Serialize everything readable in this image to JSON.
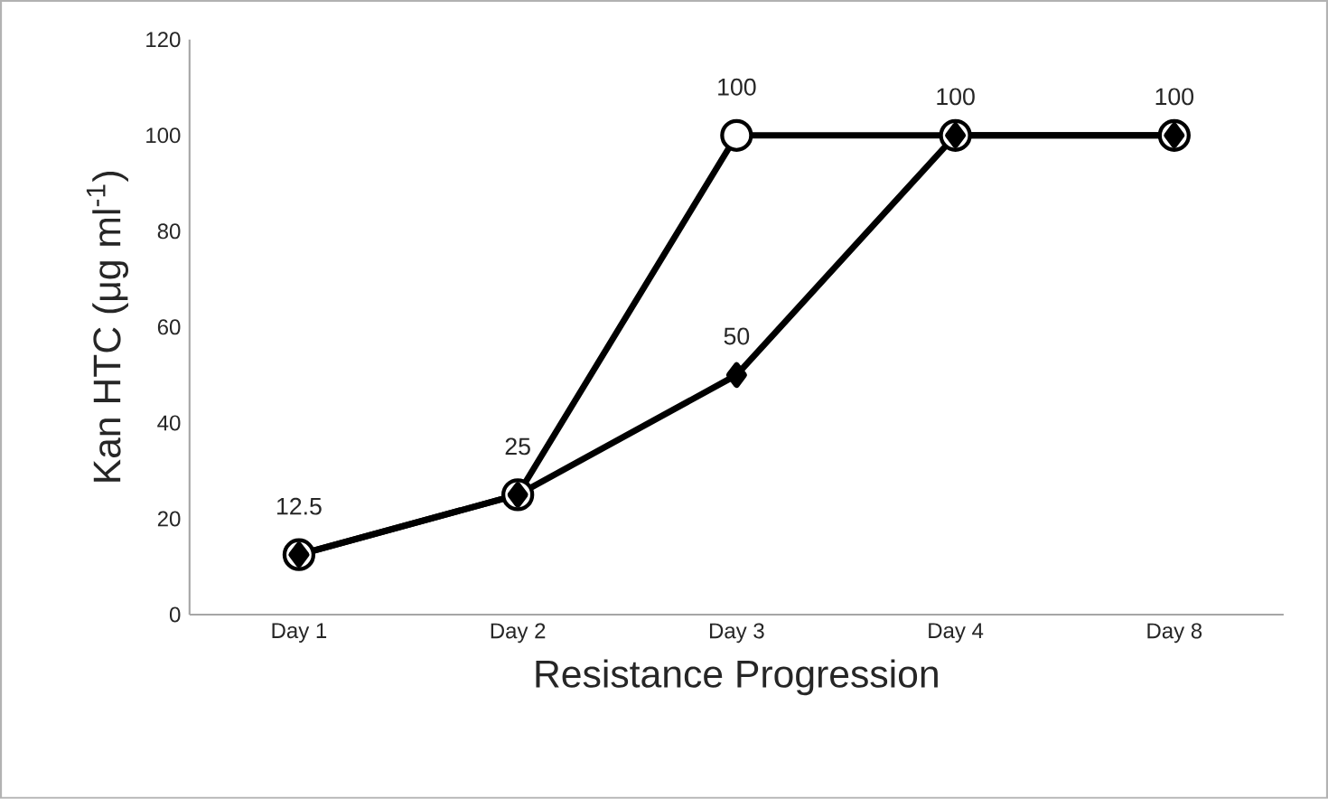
{
  "chart_data": {
    "type": "line",
    "xlabel": "Resistance Progression",
    "ylabel": "Kan HTC (μg ml$^{-1}$)",
    "categories": [
      "Day 1",
      "Day 2",
      "Day 3",
      "Day 4",
      "Day 8"
    ],
    "ylim": [
      0,
      120
    ],
    "yticks": [
      0,
      20,
      40,
      60,
      80,
      100,
      120
    ],
    "grid": false,
    "line_style": "solid",
    "series": [
      {
        "color": "#000000",
        "marker": "circle",
        "values": [
          12.5,
          25,
          100,
          100,
          100
        ],
        "value_labels": [
          "12.5",
          "25",
          "100",
          null,
          null
        ]
      },
      {
        "color": "#000000",
        "marker": "diamond",
        "values": [
          12.5,
          25,
          50,
          100,
          100
        ],
        "value_labels": [
          null,
          null,
          "50",
          "100",
          "100"
        ]
      }
    ]
  }
}
